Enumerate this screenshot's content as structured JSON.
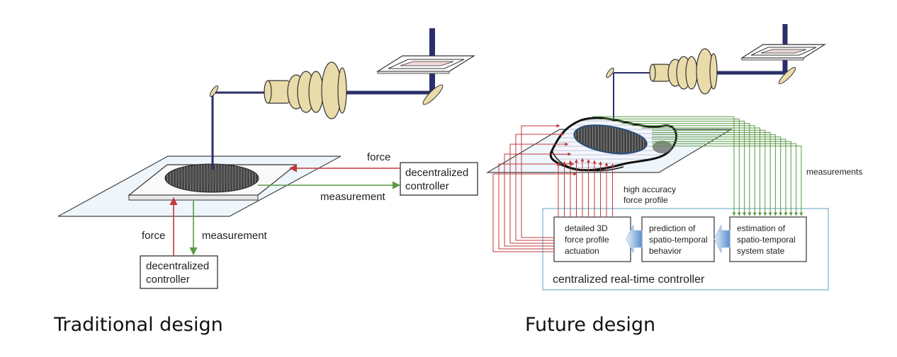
{
  "traditional": {
    "caption": "Traditional design",
    "label_force_right": "force",
    "label_measurement_right": "measurement",
    "label_force_down": "force",
    "label_measurement_down": "measurement",
    "controller_right": {
      "line1": "decentralized",
      "line2": "controller"
    },
    "controller_bottom": {
      "line1": "decentralized",
      "line2": "controller"
    }
  },
  "future": {
    "caption": "Future design",
    "label_measurements": "measurements",
    "label_high_accuracy": {
      "line1": "high accuracy",
      "line2": "force profile"
    },
    "box_actuation": {
      "line1": "detailed 3D",
      "line2": "force profile",
      "line3": "actuation"
    },
    "box_prediction": {
      "line1": "prediction of",
      "line2": "spatio-temporal",
      "line3": "behavior"
    },
    "box_estimation": {
      "line1": "estimation of",
      "line2": "spatio-temporal",
      "line3": "system state"
    },
    "controller_title": "centralized real-time controller"
  },
  "colors": {
    "force_arrow": "#c0393b",
    "measurement_arrow": "#5a9a46",
    "beam": "#2a2f6a",
    "lens": "#e9dcaa",
    "frame": "#7fb8cf"
  }
}
